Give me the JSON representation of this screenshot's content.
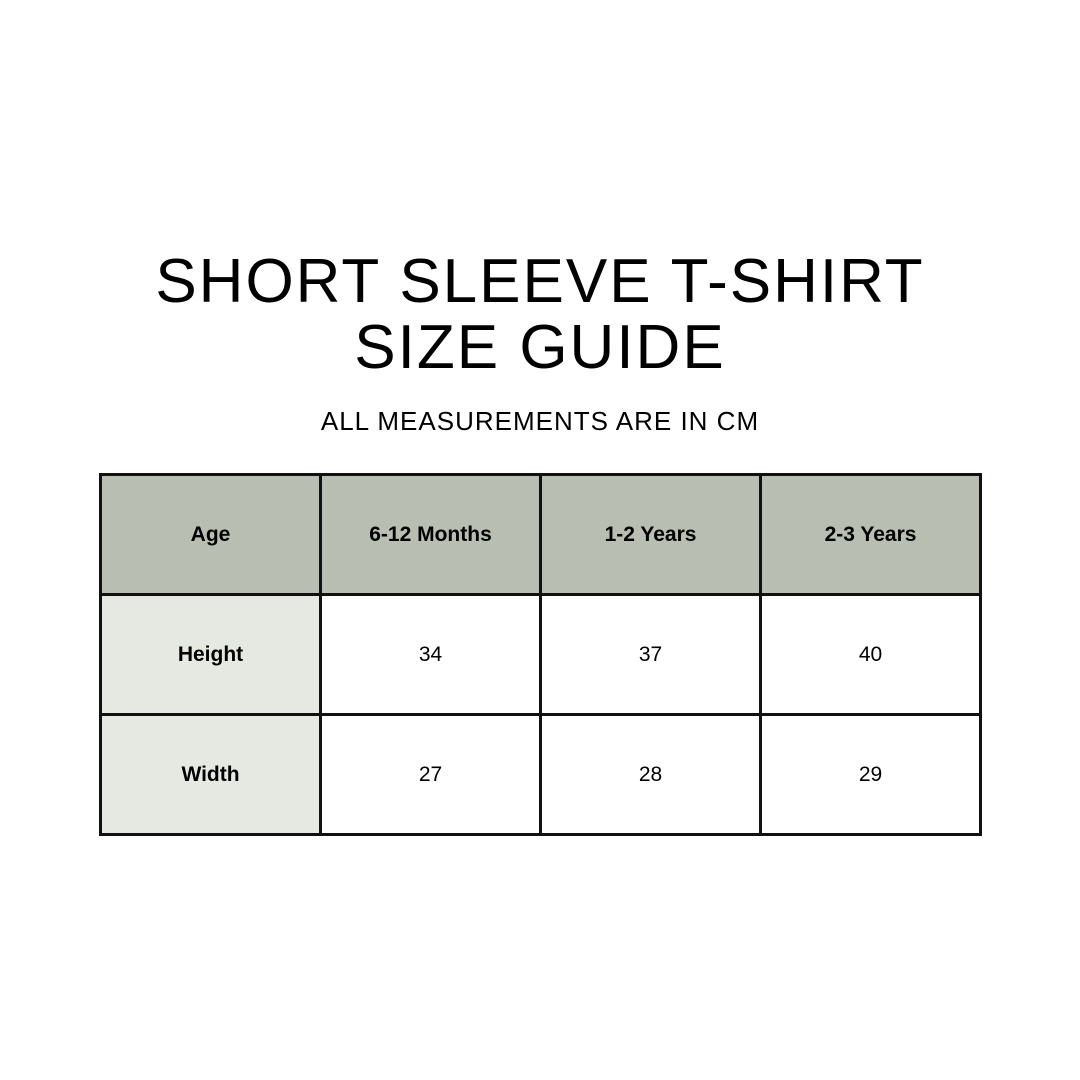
{
  "title": {
    "line1": "SHORT SLEEVE T-SHIRT",
    "line2": "SIZE GUIDE"
  },
  "subtitle": "ALL MEASUREMENTS ARE IN CM",
  "table": {
    "headers": [
      "Age",
      "6-12 Months",
      "1-2 Years",
      "2-3 Years"
    ],
    "rows": [
      {
        "label": "Height",
        "values": [
          "34",
          "37",
          "40"
        ]
      },
      {
        "label": "Width",
        "values": [
          "27",
          "28",
          "29"
        ]
      }
    ]
  },
  "colors": {
    "header_bg": "#b8beb1",
    "row_header_bg": "#e6e9e1",
    "border": "#111111"
  }
}
